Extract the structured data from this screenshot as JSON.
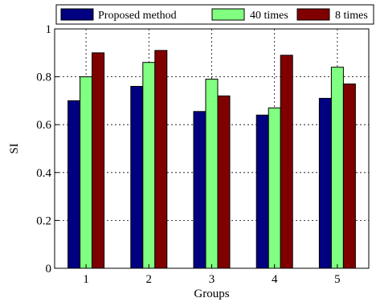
{
  "chart_data": {
    "type": "bar",
    "xlabel": "Groups",
    "ylabel": "SI",
    "categories": [
      "1",
      "2",
      "3",
      "4",
      "5"
    ],
    "ylim": [
      0,
      1
    ],
    "yticks": [
      "0",
      "0.2",
      "0.4",
      "0.6",
      "0.8",
      "1"
    ],
    "grid": true,
    "legend_position": "top",
    "series": [
      {
        "name": "Proposed method",
        "color": "#000080",
        "values": [
          0.7,
          0.76,
          0.655,
          0.64,
          0.71
        ]
      },
      {
        "name": "40 times",
        "color": "#80ff80",
        "values": [
          0.8,
          0.86,
          0.79,
          0.67,
          0.84
        ]
      },
      {
        "name": "8 times",
        "color": "#800000",
        "values": [
          0.9,
          0.91,
          0.72,
          0.89,
          0.77
        ]
      }
    ]
  }
}
